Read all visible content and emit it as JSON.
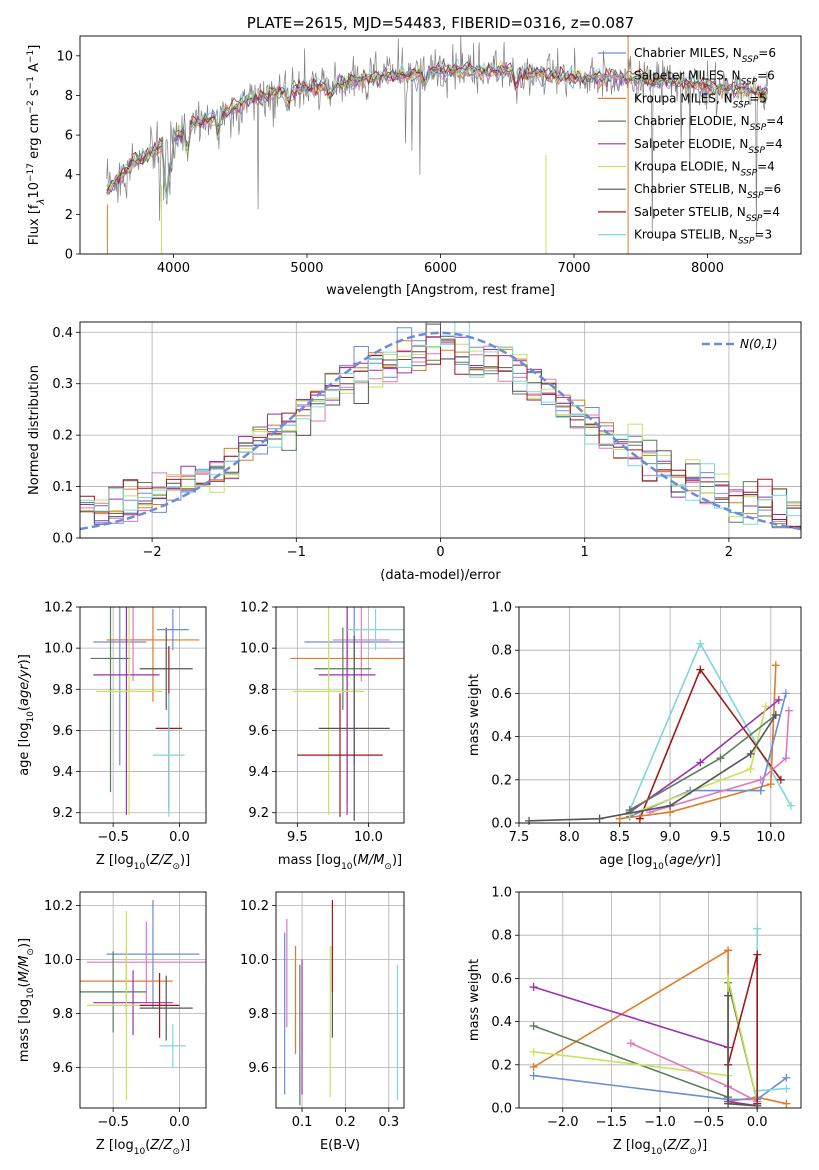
{
  "chart_data": [
    {
      "type": "line",
      "title": "PLATE=2615, MJD=54483, FIBERID=0316, z=0.087",
      "xlabel": "wavelength [Angstrom, rest frame]",
      "ylabel": "Flux [f_λ 10^-17 erg cm^-2 s^-1 A^-1]",
      "xlim": [
        3300,
        8700
      ],
      "ylim": [
        0,
        11
      ],
      "xticks": [
        "4000",
        "5000",
        "6000",
        "7000",
        "8000"
      ],
      "yticks": [
        "0",
        "2",
        "4",
        "6",
        "8",
        "10"
      ],
      "legend": [
        "Chabrier MILES, N_SSP=6",
        "Salpeter MILES, N_SSP=6",
        "Kroupa MILES, N_SSP=5",
        "Chabrier ELODIE, N_SSP=4",
        "Salpeter ELODIE, N_SSP=4",
        "Kroupa ELODIE, N_SSP=4",
        "Chabrier STELIB, N_SSP=6",
        "Salpeter STELIB, N_SSP=4",
        "Kroupa STELIB, N_SSP=3"
      ],
      "legend_position": "right",
      "series_colors": [
        "#6a8dd9",
        "#e377c2",
        "#e07b2a",
        "#5a7d5a",
        "#9b30b0",
        "#c8e25a",
        "#555555",
        "#a01818",
        "#7dd8dc"
      ],
      "data_color": "#808080",
      "continuum": [
        [
          3500,
          3.2
        ],
        [
          3700,
          4.6
        ],
        [
          3900,
          5.4
        ],
        [
          4100,
          6.3
        ],
        [
          4300,
          6.9
        ],
        [
          4600,
          7.9
        ],
        [
          4900,
          8.3
        ],
        [
          5200,
          8.5
        ],
        [
          5500,
          8.9
        ],
        [
          5800,
          9.1
        ],
        [
          6100,
          9.3
        ],
        [
          6500,
          9.2
        ],
        [
          7000,
          8.9
        ],
        [
          7400,
          8.9
        ],
        [
          7800,
          8.6
        ],
        [
          8200,
          8.3
        ],
        [
          8450,
          8.1
        ]
      ],
      "grid": false
    },
    {
      "type": "step",
      "xlabel": "(data-model)/error",
      "ylabel": "Normed distribution",
      "xlim": [
        -2.5,
        2.5
      ],
      "ylim": [
        0,
        0.42
      ],
      "xticks": [
        "−2",
        "−1",
        "0",
        "1",
        "2"
      ],
      "yticks": [
        "0.0",
        "0.1",
        "0.2",
        "0.3",
        "0.4"
      ],
      "reference_label": "N(0,1)",
      "reference_color": "#6a8dd9",
      "bin_centers": [
        -2.45,
        -2.35,
        -2.25,
        -2.15,
        -2.05,
        -1.95,
        -1.85,
        -1.75,
        -1.65,
        -1.55,
        -1.45,
        -1.35,
        -1.25,
        -1.15,
        -1.05,
        -0.95,
        -0.85,
        -0.75,
        -0.65,
        -0.55,
        -0.45,
        -0.35,
        -0.25,
        -0.15,
        -0.05,
        0.05,
        0.15,
        0.25,
        0.35,
        0.45,
        0.55,
        0.65,
        0.75,
        0.85,
        0.95,
        1.05,
        1.15,
        1.25,
        1.35,
        1.45,
        1.55,
        1.65,
        1.75,
        1.85,
        1.95,
        2.05,
        2.15,
        2.25,
        2.35,
        2.45
      ],
      "grid": true
    },
    {
      "type": "scatter",
      "xlabel": "Z [log10(Z/Z⊙)]",
      "ylabel": "age  [log10(age/yr)]",
      "xlim": [
        -0.75,
        0.2
      ],
      "ylim": [
        9.15,
        10.2
      ],
      "xticks": [
        "−0.5",
        "0.0"
      ],
      "yticks": [
        "9.2",
        "9.4",
        "9.6",
        "9.8",
        "10.0",
        "10.2"
      ],
      "points": [
        {
          "x": -0.45,
          "y": 10.03,
          "xerr": 0.2,
          "yerr": 0.6
        },
        {
          "x": -0.35,
          "y": 10.04,
          "xerr": 0.15,
          "yerr": 0.2
        },
        {
          "x": -0.2,
          "y": 10.04,
          "xerr": 0.35,
          "yerr": 0.3
        },
        {
          "x": -0.52,
          "y": 9.95,
          "xerr": 0.15,
          "yerr": 0.65
        },
        {
          "x": -0.4,
          "y": 9.87,
          "xerr": 0.25,
          "yerr": 0.68
        },
        {
          "x": -0.38,
          "y": 9.79,
          "xerr": 0.25,
          "yerr": 0.6
        },
        {
          "x": -0.1,
          "y": 9.9,
          "xerr": 0.2,
          "yerr": 0.2
        },
        {
          "x": -0.08,
          "y": 9.61,
          "xerr": 0.1,
          "yerr": 0.4
        },
        {
          "x": -0.08,
          "y": 9.48,
          "xerr": 0.12,
          "yerr": 0.3
        },
        {
          "x": -0.05,
          "y": 10.09,
          "xerr": 0.12,
          "yerr": 0.1
        }
      ],
      "grid": true
    },
    {
      "type": "scatter",
      "xlabel": "mass [log10(M/M⊙)]",
      "ylabel": "",
      "xlim": [
        9.35,
        10.25
      ],
      "ylim": [
        9.15,
        10.2
      ],
      "xticks": [
        "9.5",
        "10.0"
      ],
      "yticks": [
        "9.2",
        "9.4",
        "9.6",
        "9.8",
        "10.0",
        "10.2"
      ],
      "points": [
        {
          "x": 9.9,
          "y": 10.03,
          "xerr": 0.35,
          "yerr": 0.6
        },
        {
          "x": 9.95,
          "y": 10.04,
          "xerr": 0.2,
          "yerr": 0.2
        },
        {
          "x": 9.85,
          "y": 9.95,
          "xerr": 0.4,
          "yerr": 0.7
        },
        {
          "x": 9.82,
          "y": 9.9,
          "xerr": 0.2,
          "yerr": 0.2
        },
        {
          "x": 9.85,
          "y": 9.87,
          "xerr": 0.2,
          "yerr": 0.68
        },
        {
          "x": 9.72,
          "y": 9.79,
          "xerr": 0.25,
          "yerr": 0.6
        },
        {
          "x": 9.9,
          "y": 9.61,
          "xerr": 0.25,
          "yerr": 0.45
        },
        {
          "x": 9.8,
          "y": 9.48,
          "xerr": 0.3,
          "yerr": 0.3
        },
        {
          "x": 10.05,
          "y": 10.09,
          "xerr": 0.2,
          "yerr": 0.1
        }
      ],
      "grid": true
    },
    {
      "type": "line",
      "xlabel": "age  [log10(age/yr)]",
      "ylabel": "mass weight",
      "xlim": [
        7.5,
        10.3
      ],
      "ylim": [
        0,
        1
      ],
      "xticks": [
        "7.5",
        "8.0",
        "8.5",
        "9.0",
        "9.5",
        "10.0"
      ],
      "yticks": [
        "0.0",
        "0.2",
        "0.4",
        "0.6",
        "0.8",
        "1.0"
      ],
      "series": [
        {
          "color": "#7dd8dc",
          "x": [
            8.6,
            9.3,
            10.2
          ],
          "y": [
            0.06,
            0.83,
            0.08
          ]
        },
        {
          "color": "#a01818",
          "x": [
            8.7,
            9.3,
            10.1
          ],
          "y": [
            0.02,
            0.71,
            0.2
          ]
        },
        {
          "color": "#e07b2a",
          "x": [
            8.5,
            9.0,
            10.0,
            10.05
          ],
          "y": [
            0.02,
            0.05,
            0.18,
            0.73
          ]
        },
        {
          "color": "#6a8dd9",
          "x": [
            8.6,
            9.2,
            9.9,
            10.15
          ],
          "y": [
            0.03,
            0.15,
            0.15,
            0.6
          ]
        },
        {
          "color": "#9b30b0",
          "x": [
            8.6,
            9.3,
            10.08
          ],
          "y": [
            0.05,
            0.28,
            0.57
          ]
        },
        {
          "color": "#c8e25a",
          "x": [
            8.6,
            9.8,
            9.95
          ],
          "y": [
            0.04,
            0.25,
            0.54
          ]
        },
        {
          "color": "#e377c2",
          "x": [
            8.8,
            9.9,
            10.15,
            10.18
          ],
          "y": [
            0.05,
            0.2,
            0.3,
            0.52
          ]
        },
        {
          "color": "#5a7d5a",
          "x": [
            8.6,
            9.5,
            10.05
          ],
          "y": [
            0.06,
            0.3,
            0.5
          ]
        },
        {
          "color": "#555555",
          "x": [
            7.6,
            8.3,
            9.0,
            9.8,
            10.05
          ],
          "y": [
            0.01,
            0.02,
            0.08,
            0.32,
            0.5
          ]
        }
      ],
      "grid": true
    },
    {
      "type": "scatter",
      "xlabel": "Z [log10(Z/Z⊙)]",
      "ylabel": "mass [log10(M/M⊙)]",
      "xlim": [
        -0.75,
        0.2
      ],
      "ylim": [
        9.45,
        10.25
      ],
      "xticks": [
        "−0.5",
        "0.0"
      ],
      "yticks": [
        "9.6",
        "9.8",
        "10.0",
        "10.2"
      ],
      "points": [
        {
          "x": -0.2,
          "y": 10.02,
          "xerr": 0.35,
          "yerr": 0.2
        },
        {
          "x": -0.25,
          "y": 9.99,
          "xerr": 0.45,
          "yerr": 0.15
        },
        {
          "x": -0.4,
          "y": 9.92,
          "xerr": 0.35,
          "yerr": 0.13
        },
        {
          "x": -0.5,
          "y": 9.88,
          "xerr": 0.25,
          "yerr": 0.15
        },
        {
          "x": -0.35,
          "y": 9.84,
          "xerr": 0.3,
          "yerr": 0.12
        },
        {
          "x": -0.4,
          "y": 9.83,
          "xerr": 0.3,
          "yerr": 0.35
        },
        {
          "x": -0.1,
          "y": 9.82,
          "xerr": 0.2,
          "yerr": 0.12
        },
        {
          "x": -0.15,
          "y": 9.83,
          "xerr": 0.15,
          "yerr": 0.12
        },
        {
          "x": -0.05,
          "y": 9.68,
          "xerr": 0.1,
          "yerr": 0.08
        }
      ],
      "grid": true
    },
    {
      "type": "scatter",
      "xlabel": "E(B-V)",
      "ylabel": "",
      "xlim": [
        0.04,
        0.335
      ],
      "ylim": [
        9.45,
        10.25
      ],
      "xticks": [
        "0.1",
        "0.2",
        "0.3"
      ],
      "yticks": [
        "9.6",
        "9.8",
        "10.0",
        "10.2"
      ],
      "points": [
        {
          "x": 0.06,
          "y": 9.8,
          "xerr": 0,
          "yerr": 0.3
        },
        {
          "x": 0.065,
          "y": 9.95,
          "xerr": 0,
          "yerr": 0.2
        },
        {
          "x": 0.085,
          "y": 9.85,
          "xerr": 0,
          "yerr": 0.2
        },
        {
          "x": 0.095,
          "y": 9.72,
          "xerr": 0,
          "yerr": 0.26
        },
        {
          "x": 0.1,
          "y": 9.75,
          "xerr": 0,
          "yerr": 0.25
        },
        {
          "x": 0.165,
          "y": 9.77,
          "xerr": 0,
          "yerr": 0.28
        },
        {
          "x": 0.17,
          "y": 9.88,
          "xerr": 0,
          "yerr": 0.17
        },
        {
          "x": 0.17,
          "y": 10.05,
          "xerr": 0,
          "yerr": 0.17
        },
        {
          "x": 0.32,
          "y": 9.73,
          "xerr": 0,
          "yerr": 0.25
        }
      ],
      "grid": true
    },
    {
      "type": "line",
      "xlabel": "Z [log10(Z/Z⊙)]",
      "ylabel": "mass weight",
      "xlim": [
        -2.45,
        0.45
      ],
      "ylim": [
        0,
        1
      ],
      "xticks": [
        "−2.0",
        "−1.5",
        "−1.0",
        "−0.5",
        "0.0"
      ],
      "yticks": [
        "0.0",
        "0.2",
        "0.4",
        "0.6",
        "0.8",
        "1.0"
      ],
      "series": [
        {
          "color": "#e07b2a",
          "x": [
            -2.3,
            -0.3,
            -0.3,
            0.0,
            0.3
          ],
          "y": [
            0.19,
            0.73,
            0.03,
            0.05,
            0.02
          ]
        },
        {
          "color": "#9b30b0",
          "x": [
            -2.3,
            -0.3,
            -0.3,
            0.0
          ],
          "y": [
            0.56,
            0.28,
            0.03,
            0.01
          ]
        },
        {
          "color": "#5a7d5a",
          "x": [
            -2.3,
            -0.3,
            -0.3,
            0.0
          ],
          "y": [
            0.38,
            0.05,
            0.58,
            0.03
          ]
        },
        {
          "color": "#c8e25a",
          "x": [
            -2.3,
            -0.3,
            -0.3,
            0.0
          ],
          "y": [
            0.26,
            0.15,
            0.6,
            0.03
          ]
        },
        {
          "color": "#6a8dd9",
          "x": [
            -2.3,
            -0.3,
            0.0,
            0.3
          ],
          "y": [
            0.15,
            0.04,
            0.04,
            0.14
          ]
        },
        {
          "color": "#e377c2",
          "x": [
            -1.3,
            -0.3,
            0.0
          ],
          "y": [
            0.3,
            0.1,
            0.03
          ]
        },
        {
          "color": "#7dd8dc",
          "x": [
            0.0,
            0.0,
            0.3
          ],
          "y": [
            0.83,
            0.08,
            0.09
          ]
        },
        {
          "color": "#a01818",
          "x": [
            -0.3,
            0.0,
            0.0
          ],
          "y": [
            0.2,
            0.71,
            0.02
          ]
        },
        {
          "color": "#555555",
          "x": [
            -0.3,
            -0.3,
            0.0
          ],
          "y": [
            0.52,
            0.02,
            0.01
          ]
        }
      ],
      "grid": true
    }
  ]
}
